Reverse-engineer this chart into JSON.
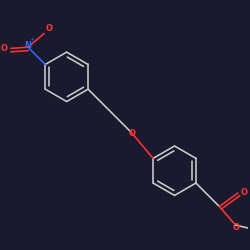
{
  "background_color": "#1a1a2e",
  "bond_color": "#cccccc",
  "atom_colors": {
    "O": "#ff3333",
    "N": "#3366ff",
    "C": "#cccccc"
  },
  "figsize": [
    2.5,
    2.5
  ],
  "dpi": 100
}
